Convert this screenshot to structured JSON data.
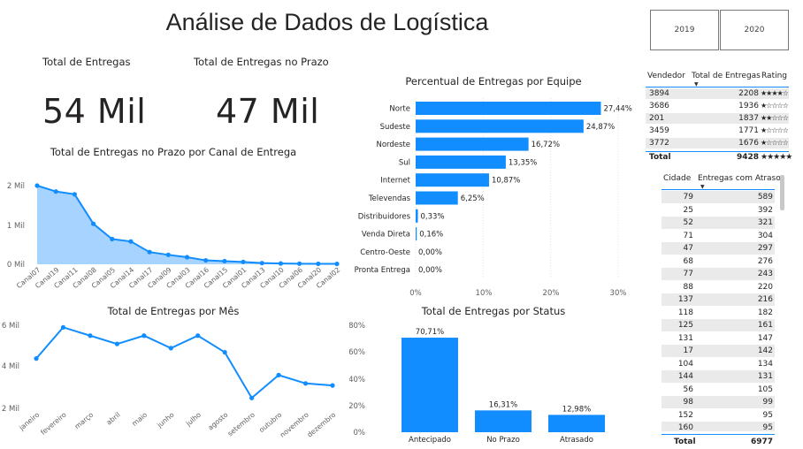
{
  "header": {
    "title": "Análise de Dados de Logística"
  },
  "year_slicer": {
    "options": [
      "2019",
      "2020"
    ]
  },
  "cards": [
    {
      "label": "Total de Entregas",
      "value": "54 Mil"
    },
    {
      "label": "Total de Entregas no Prazo",
      "value": "47 Mil"
    }
  ],
  "charts": {
    "canal": {
      "title": "Total de Entregas no Prazo por Canal de Entrega",
      "y_ticks": [
        "2 Mil",
        "1 Mil",
        "0 Mil"
      ]
    },
    "mes": {
      "title": "Total de Entregas por Mês",
      "y_ticks": [
        "6 Mil",
        "4 Mil",
        "2 Mil"
      ]
    },
    "equipe": {
      "title": "Percentual de Entregas por Equipe",
      "x_ticks": [
        "0%",
        "10%",
        "20%",
        "30%"
      ]
    },
    "status": {
      "title": "Total de Entregas por Status",
      "y_ticks": [
        "80%",
        "60%",
        "40%",
        "20%",
        "0%"
      ]
    }
  },
  "chart_data": [
    {
      "type": "area",
      "title": "Total de Entregas no Prazo por Canal de Entrega",
      "categories": [
        "Canal07",
        "Canal19",
        "Canal11",
        "Canal08",
        "Canal05",
        "Canal14",
        "Canal17",
        "Canal09",
        "Canal03",
        "Canal16",
        "Canal15",
        "Canal01",
        "Canal13",
        "Canal10",
        "Canal06",
        "Canal20",
        "Canal02"
      ],
      "values": [
        2000,
        1850,
        1780,
        1030,
        640,
        580,
        310,
        240,
        180,
        100,
        80,
        60,
        30,
        20,
        15,
        12,
        10
      ],
      "ylim": [
        0,
        2000
      ],
      "color": "#118DFF"
    },
    {
      "type": "line",
      "title": "Total de Entregas por Mês",
      "categories": [
        "janeiro",
        "fevereiro",
        "março",
        "abril",
        "maio",
        "junho",
        "julho",
        "agosto",
        "setembro",
        "outubro",
        "novembro",
        "dezembro"
      ],
      "values": [
        4400,
        5900,
        5500,
        5100,
        5500,
        4900,
        5500,
        4700,
        2500,
        3600,
        3200,
        3100
      ],
      "ylim": [
        2000,
        6000
      ],
      "color": "#118DFF"
    },
    {
      "type": "bar",
      "orientation": "horizontal",
      "title": "Percentual de Entregas por Equipe",
      "categories": [
        "Norte",
        "Sudeste",
        "Nordeste",
        "Sul",
        "Internet",
        "Televendas",
        "Distribuidores",
        "Venda Direta",
        "Centro-Oeste",
        "Pronta Entrega"
      ],
      "values": [
        27.44,
        24.87,
        16.72,
        13.35,
        10.87,
        6.25,
        0.33,
        0.16,
        0.0,
        0.0
      ],
      "labels": [
        "27,44%",
        "24,87%",
        "16,72%",
        "13,35%",
        "10,87%",
        "6,25%",
        "0,33%",
        "0,16%",
        "0,00%",
        "0,00%"
      ],
      "xlim": [
        0,
        30
      ],
      "color": "#118DFF"
    },
    {
      "type": "bar",
      "title": "Total de Entregas por Status",
      "categories": [
        "Antecipado",
        "No Prazo",
        "Atrasado"
      ],
      "values": [
        70.71,
        16.31,
        12.98
      ],
      "labels": [
        "70,71%",
        "16,31%",
        "12,98%"
      ],
      "ylim": [
        0,
        80
      ],
      "color": "#118DFF"
    }
  ],
  "vendedor_table": {
    "headers": [
      "Vendedor",
      "Total de Entregas",
      "Rating"
    ],
    "rows": [
      {
        "vendedor": "3894",
        "total": "2208",
        "stars": 4
      },
      {
        "vendedor": "3686",
        "total": "1936",
        "stars": 1
      },
      {
        "vendedor": "201",
        "total": "1837",
        "stars": 2
      },
      {
        "vendedor": "3459",
        "total": "1771",
        "stars": 1
      },
      {
        "vendedor": "3772",
        "total": "1676",
        "stars": 1
      }
    ],
    "total_label": "Total",
    "total_value": "9428",
    "total_stars": 5
  },
  "cidade_table": {
    "headers": [
      "Cidade",
      "Entregas com Atraso"
    ],
    "rows": [
      [
        "79",
        "589"
      ],
      [
        "25",
        "392"
      ],
      [
        "52",
        "321"
      ],
      [
        "71",
        "304"
      ],
      [
        "47",
        "297"
      ],
      [
        "68",
        "276"
      ],
      [
        "77",
        "243"
      ],
      [
        "88",
        "220"
      ],
      [
        "137",
        "216"
      ],
      [
        "118",
        "182"
      ],
      [
        "125",
        "161"
      ],
      [
        "131",
        "147"
      ],
      [
        "17",
        "142"
      ],
      [
        "104",
        "134"
      ],
      [
        "144",
        "131"
      ],
      [
        "56",
        "105"
      ],
      [
        "98",
        "99"
      ],
      [
        "152",
        "95"
      ],
      [
        "160",
        "95"
      ]
    ],
    "total_label": "Total",
    "total_value": "6977"
  }
}
